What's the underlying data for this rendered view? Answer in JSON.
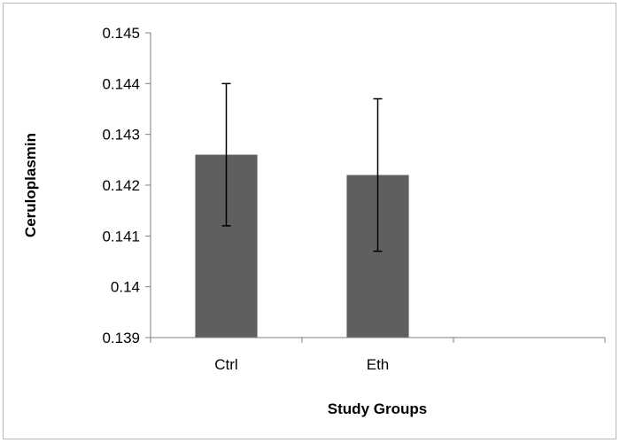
{
  "chart_data": {
    "type": "bar",
    "title": "",
    "xlabel": "Study Groups",
    "ylabel": "Ceruloplasmin",
    "categories": [
      "Ctrl",
      "Eth",
      ""
    ],
    "values": [
      0.1426,
      0.1422,
      null
    ],
    "error_low": [
      0.1412,
      0.1407,
      null
    ],
    "error_high": [
      0.144,
      0.1437,
      null
    ],
    "ylim": [
      0.139,
      0.145
    ],
    "yticks": [
      "0.139",
      "0.14",
      "0.141",
      "0.142",
      "0.143",
      "0.144",
      "0.145"
    ],
    "grid": false,
    "legend": "none",
    "bar_color": "#5f5f5f",
    "axis_color": "#7f7f7f"
  }
}
